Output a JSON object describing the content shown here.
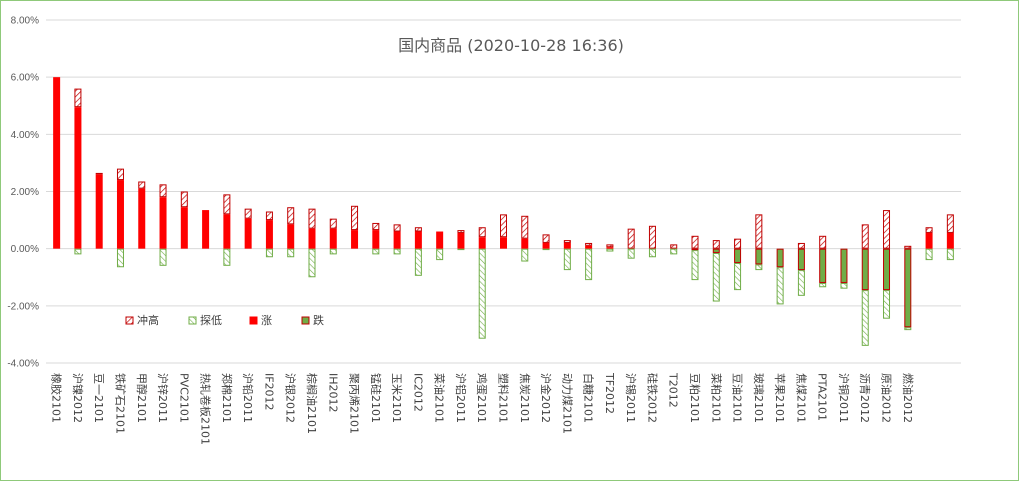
{
  "chart_data": {
    "type": "bar",
    "title": "国内商品 (2020-10-28 16:36)",
    "ylim": [
      -4,
      8
    ],
    "yticks": [
      "-4.00%",
      "-2.00%",
      "0.00%",
      "2.00%",
      "4.00%",
      "6.00%",
      "8.00%"
    ],
    "ytick_values": [
      -4,
      -2,
      0,
      2,
      4,
      6,
      8
    ],
    "grid": true,
    "legend_position": "lower-left inside plot",
    "legend": [
      {
        "key": "high",
        "label": "冲高"
      },
      {
        "key": "low",
        "label": "探低"
      },
      {
        "key": "up",
        "label": "涨"
      },
      {
        "key": "down",
        "label": "跌"
      }
    ],
    "colors": {
      "up": "#ff0000",
      "down": "#70ad47",
      "down_border": "#c00000",
      "high_hatch": "#c00000",
      "low_hatch": "#70ad47",
      "grid": "#d9d9d9",
      "frame": "#8fc97a"
    },
    "categories": [
      "橡胶2101",
      "沪镍2012",
      "豆一2101",
      "铁矿石2101",
      "甲醇2101",
      "沪锌2011",
      "PVC2101",
      "热轧卷板2101",
      "郑棉2101",
      "沪铅2011",
      "IF2012",
      "沪银2012",
      "棕榈油2101",
      "IH2012",
      "聚丙烯2101",
      "锰硅2101",
      "玉米2101",
      "IC2012",
      "菜油2101",
      "沪铝2011",
      "鸡蛋2101",
      "塑料2101",
      "焦炭2101",
      "沪金2012",
      "动力煤2101",
      "白糖2101",
      "TF2012",
      "沪锡2011",
      "硅铁2012",
      "T2012",
      "豆粕2101",
      "菜粕2101",
      "豆油2101",
      "玻璃2101",
      "苹果2101",
      "焦煤2101",
      "PTA2101",
      "沪铜2011",
      "沥青2012",
      "原油2012",
      "燃油2012",
      "",
      ""
    ],
    "series": [
      {
        "name": "涨",
        "key": "up",
        "values": [
          6.0,
          4.95,
          2.6,
          2.4,
          2.1,
          1.8,
          1.45,
          1.35,
          1.2,
          1.05,
          1.0,
          0.85,
          0.7,
          0.7,
          0.65,
          0.65,
          0.6,
          0.6,
          0.6,
          0.55,
          0.4,
          0.4,
          0.35,
          0.2,
          0.2,
          0.1,
          0.05,
          0,
          0,
          0,
          0,
          0,
          0,
          0,
          0,
          0,
          0,
          0,
          0,
          0,
          0,
          0.55,
          0.55
        ]
      },
      {
        "name": "跌",
        "key": "down",
        "values": [
          0,
          0,
          0,
          0,
          0,
          0,
          0,
          0,
          0,
          0,
          0,
          0,
          0,
          0,
          0,
          0,
          0,
          0,
          0,
          0,
          0,
          0,
          0,
          0,
          0,
          0,
          0,
          0,
          0,
          0,
          -0.05,
          -0.15,
          -0.5,
          -0.55,
          -0.65,
          -0.75,
          -1.2,
          -1.2,
          -1.45,
          -1.45,
          -2.75,
          0,
          0
        ]
      },
      {
        "name": "冲高",
        "key": "high",
        "values": [
          6.0,
          5.6,
          2.65,
          2.8,
          2.35,
          2.25,
          2.0,
          1.35,
          1.9,
          1.4,
          1.3,
          1.45,
          1.4,
          1.05,
          1.5,
          0.9,
          0.85,
          0.75,
          0.6,
          0.65,
          0.75,
          1.2,
          1.15,
          0.5,
          0.3,
          0.2,
          0.15,
          0.7,
          0.8,
          0.15,
          0.45,
          0.3,
          0.35,
          1.2,
          0,
          0.2,
          0.45,
          0,
          0.85,
          1.35,
          0.1,
          0.75,
          1.2
        ]
      },
      {
        "name": "探低",
        "key": "low",
        "values": [
          0,
          -0.2,
          0,
          -0.65,
          0,
          -0.6,
          0,
          0,
          -0.6,
          0,
          -0.3,
          -0.3,
          -1.0,
          -0.2,
          0,
          -0.2,
          -0.2,
          -0.95,
          -0.4,
          -0.05,
          -3.15,
          0,
          -0.45,
          -0.05,
          -0.75,
          -1.1,
          -0.1,
          -0.35,
          -0.3,
          -0.2,
          -1.1,
          -1.85,
          -1.45,
          -0.75,
          -1.95,
          -1.65,
          -1.35,
          -1.4,
          -3.4,
          -2.45,
          -2.85,
          -0.4,
          -0.4
        ]
      }
    ]
  }
}
